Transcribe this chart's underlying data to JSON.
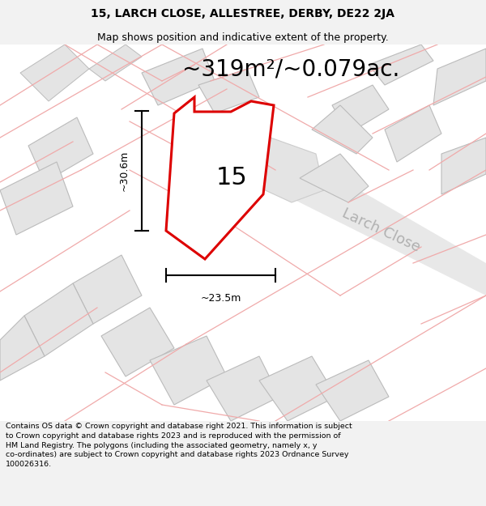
{
  "title_line1": "15, LARCH CLOSE, ALLESTREE, DERBY, DE22 2JA",
  "title_line2": "Map shows position and indicative extent of the property.",
  "area_text": "~319m²/~0.079ac.",
  "width_label": "~23.5m",
  "height_label": "~30.6m",
  "property_number": "15",
  "street_name": "Larch Close",
  "footer_text": "Contains OS data © Crown copyright and database right 2021. This information is subject to Crown copyright and database rights 2023 and is reproduced with the permission of HM Land Registry. The polygons (including the associated geometry, namely x, y co-ordinates) are subject to Crown copyright and database rights 2023 Ordnance Survey 100026316.",
  "bg_color": "#f2f2f2",
  "map_bg": "#ffffff",
  "property_outline_color": "#dd0000",
  "neighbor_outline_color": "#f0aaaa",
  "neighbor_fill_color": "#e4e4e4",
  "road_fill_color": "#e8e8e8",
  "title_fontsize": 10,
  "subtitle_fontsize": 9,
  "area_fontsize": 20,
  "number_fontsize": 22,
  "label_fontsize": 9,
  "footer_fontsize": 6.8,
  "street_fontsize": 13
}
